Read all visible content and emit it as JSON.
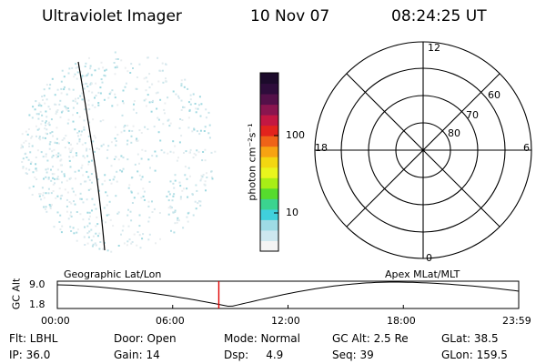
{
  "header": {
    "instrument": "Ultraviolet Imager",
    "date": "10 Nov 07",
    "time": "08:24:25 UT"
  },
  "colorbar": {
    "unit_label": "photon cm⁻²s⁻¹",
    "ticks": [
      "100",
      "10"
    ],
    "colors": [
      "#f4f4f4",
      "#cde7ef",
      "#9edbe5",
      "#40d0dc",
      "#3bd38f",
      "#56dc2d",
      "#a8ee16",
      "#e9f51d",
      "#f3d711",
      "#f7a312",
      "#ef6318",
      "#e2231d",
      "#c31742",
      "#8a154f",
      "#541049",
      "#2e0c3b",
      "#1c0a2b"
    ]
  },
  "polar_plot": {
    "mlt_labels": {
      "top": "12",
      "bottom": "0",
      "left": "18",
      "right": "6"
    },
    "lat_labels": [
      "60",
      "70",
      "80"
    ]
  },
  "altitude_strip": {
    "axis_label": "GC Alt",
    "y_ticks": [
      "9.0",
      "1.8"
    ],
    "left_title": "Geographic Lat/Lon",
    "right_title": "Apex  MLat/MLT",
    "x_ticks": [
      "00:00",
      "06:00",
      "12:00",
      "18:00",
      "23:59"
    ],
    "current_time_fraction": 0.35,
    "marker_color": "#e00000"
  },
  "info": {
    "row1": [
      "Flt: LBHL",
      "Door: Open",
      "Mode: Normal",
      "GC Alt: 2.5 Re",
      "GLat:  38.5"
    ],
    "row2": [
      "IP: 36.0",
      "Gain: 14",
      "Dsp:     4.9",
      "Seq: 39",
      "GLon: 159.5"
    ]
  }
}
